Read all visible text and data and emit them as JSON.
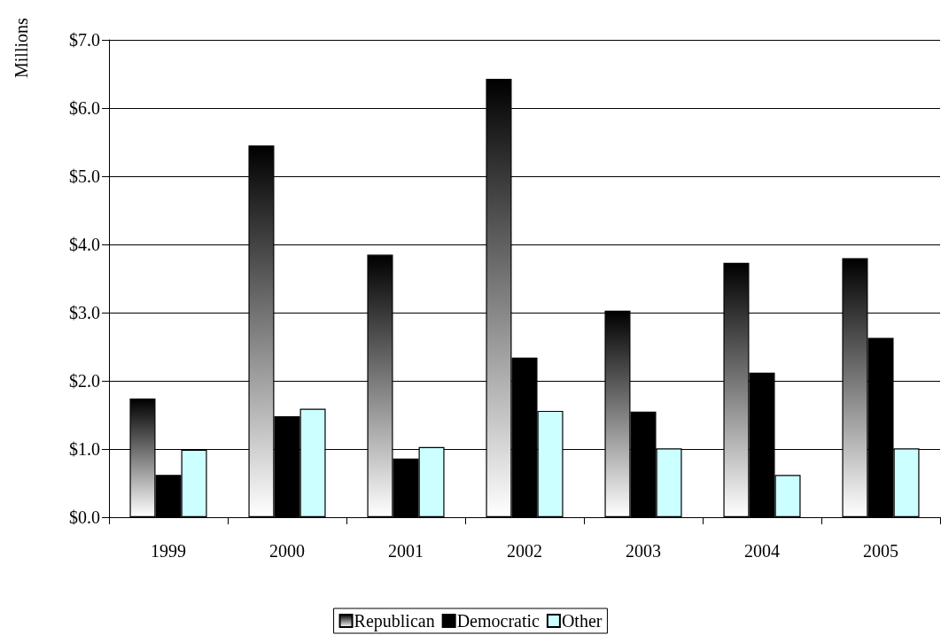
{
  "chart_data": {
    "type": "bar",
    "ylabel": "Millions",
    "categories": [
      "1999",
      "2000",
      "2001",
      "2002",
      "2003",
      "2004",
      "2005"
    ],
    "series": [
      {
        "name": "Republican",
        "color": "#000000",
        "values": [
          1.74,
          5.45,
          3.85,
          6.43,
          3.03,
          3.73,
          3.8
        ]
      },
      {
        "name": "Democratic",
        "color": "#000000",
        "values": [
          0.62,
          1.48,
          0.86,
          2.34,
          1.55,
          2.12,
          2.63
        ]
      },
      {
        "name": "Other",
        "color": "#ccffff",
        "values": [
          0.99,
          1.59,
          1.03,
          1.56,
          1.01,
          0.62,
          1.01
        ]
      }
    ],
    "ylim": [
      0,
      7
    ],
    "yticks": [
      {
        "value": 0,
        "label": "$0.0"
      },
      {
        "value": 1,
        "label": "$1.0"
      },
      {
        "value": 2,
        "label": "$2.0"
      },
      {
        "value": 3,
        "label": "$3.0"
      },
      {
        "value": 4,
        "label": "$4.0"
      },
      {
        "value": 5,
        "label": "$5.0"
      },
      {
        "value": 6,
        "label": "$6.0"
      },
      {
        "value": 7,
        "label": "$7.0"
      }
    ],
    "grid": "y",
    "legend": "bottom"
  }
}
